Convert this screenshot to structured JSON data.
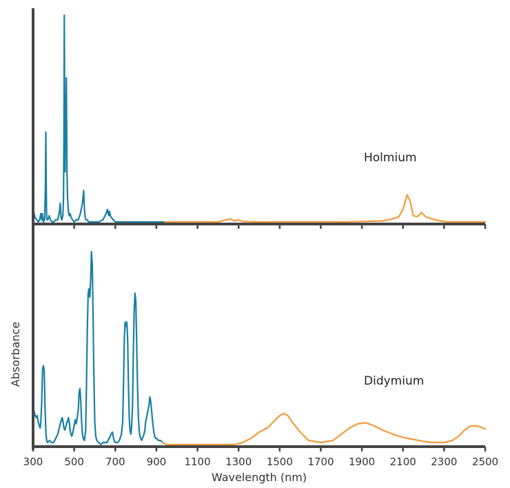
{
  "chart_data": {
    "type": "line",
    "xlabel": "Wavelength (nm)",
    "ylabel": "Absorbance",
    "x_tick_labels": [
      "300",
      "500",
      "700",
      "900",
      "1100",
      "1300",
      "1500",
      "1700",
      "1900",
      "2100",
      "2300",
      "2500"
    ],
    "xlim": [
      300,
      2500
    ],
    "ylim": [
      0,
      1
    ],
    "grid": false,
    "legend": "none",
    "colors": {
      "visible": "#1a7fa3",
      "nir": "#f29a3a",
      "axis": "#444444"
    },
    "panels": [
      {
        "name": "Holmium",
        "series": [
          {
            "segment": "visible",
            "x": [
              300,
              305,
              310,
              318,
              325,
              332,
              338,
              342,
              345,
              350,
              356,
              360,
              362,
              364,
              366,
              368,
              372,
              378,
              385,
              392,
              400,
              410,
              420,
              428,
              432,
              436,
              440,
              445,
              448,
              450,
              452,
              454,
              456,
              458,
              460,
              462,
              465,
              468,
              472,
              476,
              480,
              486,
              492,
              500,
              510,
              520,
              530,
              540,
              546,
              550,
              554,
              558,
              564,
              570,
              580,
              600,
              620,
              640,
              655,
              662,
              668,
              672,
              676,
              682,
              690,
              700,
              720,
              740,
              760,
              800,
              850,
              900,
              940
            ],
            "y": [
              0.08,
              0.05,
              0.03,
              0.02,
              0.01,
              0.02,
              0.05,
              0.02,
              0.05,
              0.01,
              0.02,
              0.18,
              0.44,
              0.18,
              0.03,
              0.02,
              0.02,
              0.04,
              0.02,
              0.01,
              0.01,
              0.02,
              0.02,
              0.06,
              0.1,
              0.03,
              0.02,
              0.04,
              0.12,
              0.38,
              1.0,
              0.5,
              0.25,
              0.62,
              0.42,
              0.7,
              0.25,
              0.12,
              0.06,
              0.04,
              0.05,
              0.03,
              0.02,
              0.01,
              0.02,
              0.02,
              0.05,
              0.1,
              0.16,
              0.07,
              0.03,
              0.02,
              0.02,
              0.01,
              0.01,
              0.01,
              0.01,
              0.02,
              0.05,
              0.07,
              0.04,
              0.06,
              0.04,
              0.03,
              0.02,
              0.01,
              0.01,
              0.01,
              0.01,
              0.01,
              0.01,
              0.01,
              0.01
            ]
          },
          {
            "segment": "nir",
            "x": [
              940,
              1000,
              1100,
              1200,
              1240,
              1260,
              1280,
              1300,
              1320,
              1400,
              1500,
              1600,
              1700,
              1800,
              1900,
              2000,
              2050,
              2080,
              2100,
              2120,
              2135,
              2150,
              2170,
              2190,
              2210,
              2240,
              2280,
              2320,
              2400,
              2500
            ],
            "y": [
              0.01,
              0.01,
              0.01,
              0.01,
              0.02,
              0.025,
              0.015,
              0.02,
              0.012,
              0.01,
              0.01,
              0.01,
              0.01,
              0.01,
              0.012,
              0.015,
              0.025,
              0.035,
              0.07,
              0.14,
              0.11,
              0.04,
              0.035,
              0.055,
              0.035,
              0.025,
              0.015,
              0.01,
              0.01,
              0.01
            ]
          }
        ]
      },
      {
        "name": "Didymium",
        "series": [
          {
            "segment": "visible",
            "x": [
              300,
              305,
              310,
              315,
              320,
              325,
              330,
              335,
              338,
              342,
              346,
              350,
              354,
              358,
              362,
              366,
              370,
              380,
              390,
              400,
              410,
              420,
              430,
              438,
              442,
              446,
              450,
              455,
              460,
              465,
              468,
              472,
              476,
              480,
              484,
              488,
              494,
              500,
              505,
              510,
              515,
              520,
              524,
              528,
              532,
              536,
              540,
              544,
              550,
              556,
              560,
              564,
              568,
              572,
              576,
              580,
              584,
              588,
              592,
              596,
              600,
              605,
              610,
              620,
              630,
              640,
              650,
              660,
              670,
              680,
              686,
              690,
              694,
              700,
              710,
              720,
              730,
              736,
              740,
              744,
              748,
              752,
              756,
              760,
              764,
              768,
              772,
              776,
              780,
              784,
              788,
              792,
              796,
              800,
              804,
              808,
              812,
              816,
              820,
              824,
              828,
              832,
              836,
              840,
              844,
              848,
              852,
              856,
              860,
              864,
              868,
              872,
              876,
              880,
              884,
              888,
              892,
              896,
              900,
              910,
              920,
              930
            ],
            "y": [
              0.19,
              0.17,
              0.15,
              0.14,
              0.15,
              0.12,
              0.1,
              0.09,
              0.12,
              0.21,
              0.37,
              0.39,
              0.37,
              0.2,
              0.07,
              0.03,
              0.02,
              0.03,
              0.02,
              0.02,
              0.04,
              0.06,
              0.1,
              0.13,
              0.14,
              0.12,
              0.09,
              0.08,
              0.1,
              0.12,
              0.12,
              0.14,
              0.12,
              0.08,
              0.06,
              0.05,
              0.07,
              0.1,
              0.13,
              0.11,
              0.14,
              0.18,
              0.26,
              0.28,
              0.22,
              0.12,
              0.06,
              0.04,
              0.03,
              0.08,
              0.3,
              0.56,
              0.74,
              0.76,
              0.72,
              0.8,
              0.94,
              0.88,
              0.62,
              0.32,
              0.12,
              0.05,
              0.03,
              0.02,
              0.01,
              0.02,
              0.02,
              0.02,
              0.04,
              0.06,
              0.07,
              0.05,
              0.03,
              0.02,
              0.02,
              0.03,
              0.06,
              0.12,
              0.3,
              0.52,
              0.6,
              0.58,
              0.6,
              0.52,
              0.3,
              0.14,
              0.08,
              0.06,
              0.1,
              0.2,
              0.46,
              0.66,
              0.74,
              0.7,
              0.5,
              0.3,
              0.15,
              0.08,
              0.05,
              0.04,
              0.03,
              0.04,
              0.05,
              0.06,
              0.08,
              0.12,
              0.14,
              0.16,
              0.18,
              0.2,
              0.24,
              0.22,
              0.18,
              0.14,
              0.1,
              0.07,
              0.05,
              0.04,
              0.04,
              0.03,
              0.03,
              0.02
            ]
          },
          {
            "segment": "nir",
            "x": [
              930,
              950,
              1000,
              1100,
              1200,
              1280,
              1320,
              1360,
              1400,
              1440,
              1470,
              1500,
              1520,
              1540,
              1560,
              1600,
              1640,
              1700,
              1760,
              1800,
              1840,
              1880,
              1920,
              1960,
              2000,
              2050,
              2100,
              2150,
              2200,
              2250,
              2300,
              2340,
              2370,
              2400,
              2430,
              2460,
              2490,
              2500
            ],
            "y": [
              0.02,
              0.01,
              0.01,
              0.01,
              0.01,
              0.01,
              0.02,
              0.04,
              0.07,
              0.09,
              0.12,
              0.15,
              0.16,
              0.15,
              0.12,
              0.07,
              0.03,
              0.02,
              0.03,
              0.06,
              0.09,
              0.11,
              0.115,
              0.1,
              0.08,
              0.06,
              0.045,
              0.035,
              0.025,
              0.02,
              0.02,
              0.03,
              0.05,
              0.08,
              0.1,
              0.1,
              0.09,
              0.085
            ]
          }
        ]
      }
    ]
  }
}
